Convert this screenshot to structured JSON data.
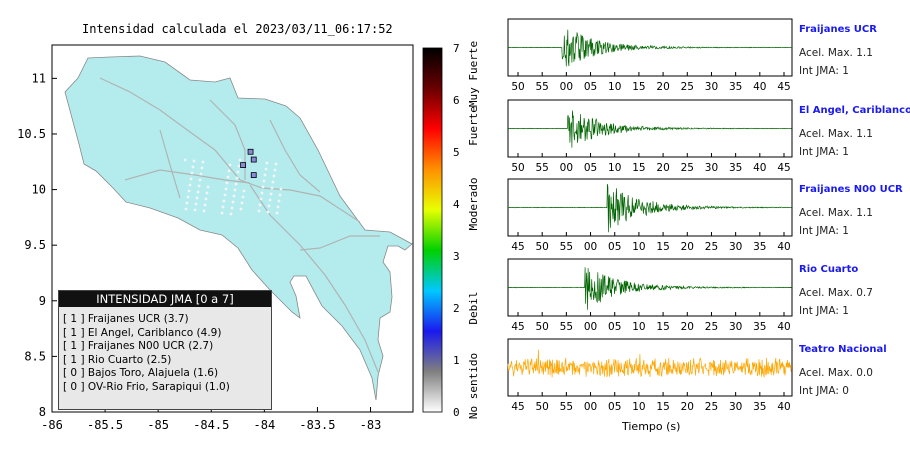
{
  "map": {
    "title": "Intensidad calculada el 2023/03/11_06:17:52",
    "x_ticks": [
      "-86",
      "-85.5",
      "-85",
      "-84.5",
      "-84",
      "-83.5",
      "-83"
    ],
    "y_ticks": [
      "11",
      "10.5",
      "10",
      "9.5",
      "9",
      "8.5",
      "8"
    ],
    "land_color": "#b4ecee",
    "stations": [
      {
        "lon": -84.13,
        "lat": 10.34
      },
      {
        "lon": -84.1,
        "lat": 10.27
      },
      {
        "lon": -84.2,
        "lat": 10.22
      },
      {
        "lon": -84.1,
        "lat": 10.13
      }
    ]
  },
  "legend": {
    "title": "INTENSIDAD JMA [0 a 7]",
    "rows": [
      "[ 1 ]  Fraijanes UCR (3.7)",
      "[ 1 ]  El Angel, Cariblanco (4.9)",
      "[ 1 ]  Fraijanes N00 UCR (2.7)",
      "[ 1 ]  Rio Cuarto (2.5)",
      "[ 0 ]  Bajos Toro, Alajuela (1.6)",
      "[ 0 ]  OV-Rio Frio, Sarapiqui (1.0)"
    ]
  },
  "colorbar": {
    "ticks": [
      "0",
      "1",
      "2",
      "3",
      "4",
      "5",
      "6",
      "7"
    ],
    "bands": [
      {
        "label": "No sentido",
        "from": 0,
        "to": 1
      },
      {
        "label": "Debil",
        "from": 1,
        "to": 3
      },
      {
        "label": "Moderado",
        "from": 3,
        "to": 5
      },
      {
        "label": "Fuerte",
        "from": 5,
        "to": 6
      },
      {
        "label": "Muy Fuerte",
        "from": 6,
        "to": 7
      }
    ],
    "colors": [
      "#ffffff",
      "#808080",
      "#1a1aee",
      "#00c8ff",
      "#00d000",
      "#e8ff00",
      "#ff9000",
      "#ff0000",
      "#6a0000",
      "#000000"
    ]
  },
  "panels": [
    {
      "name": "Fraijanes UCR",
      "accel": "Acel. Max. 1.1",
      "int": "Int JMA: 1",
      "ticks": [
        "50",
        "55",
        "00",
        "05",
        "10",
        "15",
        "20",
        "25",
        "30",
        "35",
        "40",
        "45"
      ],
      "color": "#006400",
      "onset": 0.19,
      "amp": 0.85
    },
    {
      "name": "El Angel, Cariblanco",
      "accel": "Acel. Max. 1.1",
      "int": "Int JMA: 1",
      "ticks": [
        "50",
        "55",
        "00",
        "05",
        "10",
        "15",
        "20",
        "25",
        "30",
        "35",
        "40",
        "45"
      ],
      "color": "#006400",
      "onset": 0.21,
      "amp": 0.8
    },
    {
      "name": "Fraijanes N00 UCR",
      "accel": "Acel. Max. 1.1",
      "int": "Int JMA: 1",
      "ticks": [
        "45",
        "50",
        "55",
        "00",
        "05",
        "10",
        "15",
        "20",
        "25",
        "30",
        "35",
        "40"
      ],
      "color": "#006400",
      "onset": 0.35,
      "amp": 0.9
    },
    {
      "name": "Rio Cuarto",
      "accel": "Acel. Max. 0.7",
      "int": "Int JMA: 1",
      "ticks": [
        "45",
        "50",
        "55",
        "00",
        "05",
        "10",
        "15",
        "20",
        "25",
        "30",
        "35",
        "40"
      ],
      "color": "#006400",
      "onset": 0.27,
      "amp": 0.85
    },
    {
      "name": "Teatro Nacional",
      "accel": "Acel. Max. 0.0",
      "int": "Int JMA: 0",
      "ticks": [
        "45",
        "50",
        "55",
        "00",
        "05",
        "10",
        "15",
        "20",
        "25",
        "30",
        "35",
        "40"
      ],
      "color": "#ffa500",
      "onset": 0.0,
      "amp": 0.6
    }
  ],
  "xlabel": "Tiempo (s)"
}
